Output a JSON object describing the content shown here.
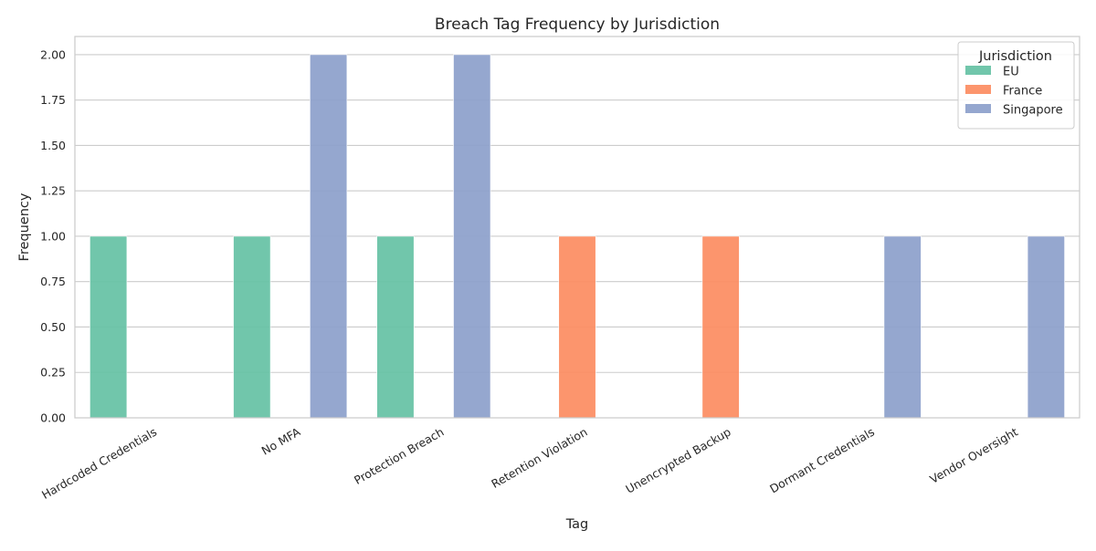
{
  "chart_data": {
    "type": "bar",
    "title": "Breach Tag Frequency by Jurisdiction",
    "xlabel": "Tag",
    "ylabel": "Frequency",
    "categories": [
      "Hardcoded Credentials",
      "No MFA",
      "Protection Breach",
      "Retention Violation",
      "Unencrypted Backup",
      "Dormant Credentials",
      "Vendor Oversight"
    ],
    "series": [
      {
        "name": "EU",
        "color": "#66c2a5",
        "values": [
          1,
          1,
          1,
          0,
          0,
          0,
          0
        ]
      },
      {
        "name": "France",
        "color": "#fc8d62",
        "values": [
          0,
          0,
          0,
          1,
          1,
          0,
          0
        ]
      },
      {
        "name": "Singapore",
        "color": "#8da0cb",
        "values": [
          0,
          2,
          2,
          0,
          0,
          1,
          1
        ]
      }
    ],
    "ylim": [
      0,
      2.1
    ],
    "yticks": [
      "0.00",
      "0.25",
      "0.50",
      "0.75",
      "1.00",
      "1.25",
      "1.50",
      "1.75",
      "2.00"
    ],
    "grid": true,
    "legend": {
      "title": "Jurisdiction",
      "position": "top-right"
    }
  }
}
